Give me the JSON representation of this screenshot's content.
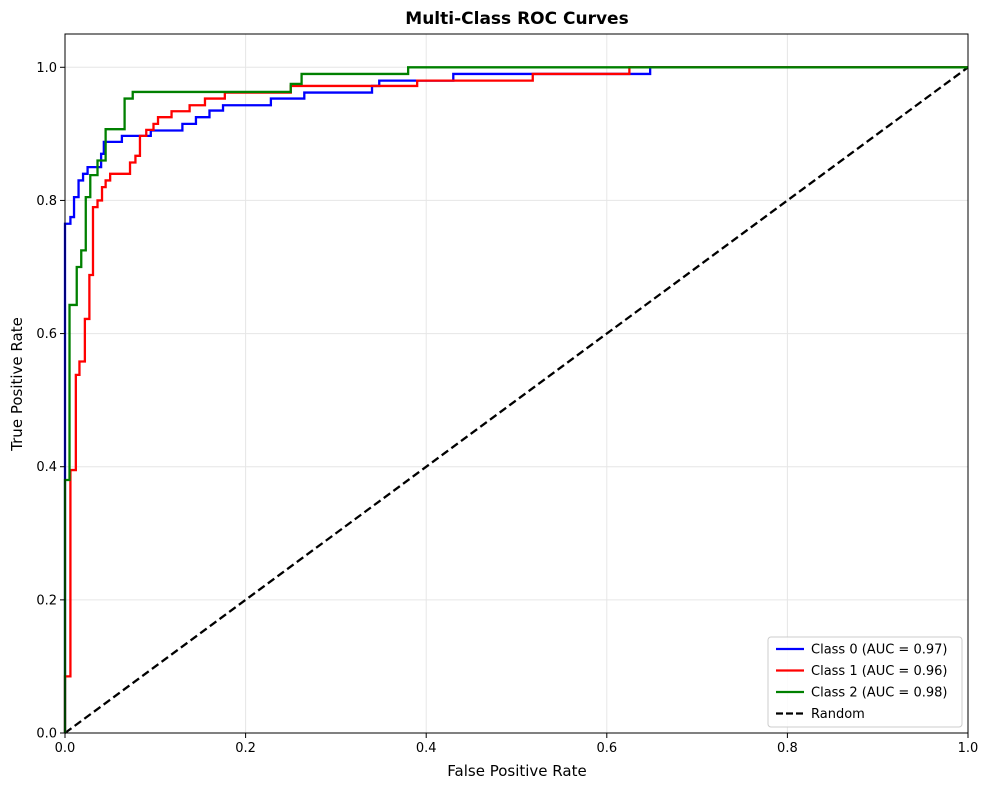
{
  "chart_data": {
    "type": "line",
    "title": "Multi-Class ROC Curves",
    "xlabel": "False Positive Rate",
    "ylabel": "True Positive Rate",
    "xlim": [
      0,
      1
    ],
    "ylim": [
      0,
      1.05
    ],
    "xticks": [
      "0.0",
      "0.2",
      "0.4",
      "0.6",
      "0.8",
      "1.0"
    ],
    "yticks": [
      "0.0",
      "0.2",
      "0.4",
      "0.6",
      "0.8",
      "1.0"
    ],
    "grid": true,
    "legend_position": "lower right",
    "series": [
      {
        "name": "Class 0 (AUC = 0.97)",
        "color": "#0000ff",
        "points": [
          [
            0,
            0
          ],
          [
            0,
            0.765
          ],
          [
            0.006,
            0.765
          ],
          [
            0.006,
            0.775
          ],
          [
            0.01,
            0.775
          ],
          [
            0.01,
            0.805
          ],
          [
            0.015,
            0.805
          ],
          [
            0.015,
            0.83
          ],
          [
            0.02,
            0.83
          ],
          [
            0.02,
            0.84
          ],
          [
            0.025,
            0.84
          ],
          [
            0.025,
            0.85
          ],
          [
            0.04,
            0.85
          ],
          [
            0.04,
            0.87
          ],
          [
            0.043,
            0.87
          ],
          [
            0.043,
            0.888
          ],
          [
            0.063,
            0.888
          ],
          [
            0.063,
            0.897
          ],
          [
            0.095,
            0.897
          ],
          [
            0.095,
            0.905
          ],
          [
            0.13,
            0.905
          ],
          [
            0.13,
            0.915
          ],
          [
            0.145,
            0.915
          ],
          [
            0.145,
            0.925
          ],
          [
            0.16,
            0.925
          ],
          [
            0.16,
            0.935
          ],
          [
            0.175,
            0.935
          ],
          [
            0.175,
            0.943
          ],
          [
            0.228,
            0.943
          ],
          [
            0.228,
            0.953
          ],
          [
            0.265,
            0.953
          ],
          [
            0.265,
            0.962
          ],
          [
            0.34,
            0.962
          ],
          [
            0.34,
            0.972
          ],
          [
            0.348,
            0.972
          ],
          [
            0.348,
            0.98
          ],
          [
            0.43,
            0.98
          ],
          [
            0.43,
            0.99
          ],
          [
            0.648,
            0.99
          ],
          [
            0.648,
            1.0
          ],
          [
            1.0,
            1.0
          ]
        ]
      },
      {
        "name": "Class 1 (AUC = 0.96)",
        "color": "#ff0000",
        "points": [
          [
            0,
            0
          ],
          [
            0,
            0.085
          ],
          [
            0.006,
            0.085
          ],
          [
            0.006,
            0.395
          ],
          [
            0.012,
            0.395
          ],
          [
            0.012,
            0.538
          ],
          [
            0.016,
            0.538
          ],
          [
            0.016,
            0.558
          ],
          [
            0.022,
            0.558
          ],
          [
            0.022,
            0.622
          ],
          [
            0.027,
            0.622
          ],
          [
            0.027,
            0.688
          ],
          [
            0.031,
            0.688
          ],
          [
            0.031,
            0.79
          ],
          [
            0.036,
            0.79
          ],
          [
            0.036,
            0.8
          ],
          [
            0.041,
            0.8
          ],
          [
            0.041,
            0.82
          ],
          [
            0.045,
            0.82
          ],
          [
            0.045,
            0.83
          ],
          [
            0.05,
            0.83
          ],
          [
            0.05,
            0.84
          ],
          [
            0.072,
            0.84
          ],
          [
            0.072,
            0.857
          ],
          [
            0.078,
            0.857
          ],
          [
            0.078,
            0.867
          ],
          [
            0.083,
            0.867
          ],
          [
            0.083,
            0.897
          ],
          [
            0.09,
            0.897
          ],
          [
            0.09,
            0.906
          ],
          [
            0.098,
            0.906
          ],
          [
            0.098,
            0.915
          ],
          [
            0.103,
            0.915
          ],
          [
            0.103,
            0.925
          ],
          [
            0.118,
            0.925
          ],
          [
            0.118,
            0.934
          ],
          [
            0.138,
            0.934
          ],
          [
            0.138,
            0.943
          ],
          [
            0.155,
            0.943
          ],
          [
            0.155,
            0.953
          ],
          [
            0.177,
            0.953
          ],
          [
            0.177,
            0.962
          ],
          [
            0.25,
            0.962
          ],
          [
            0.25,
            0.972
          ],
          [
            0.39,
            0.972
          ],
          [
            0.39,
            0.98
          ],
          [
            0.518,
            0.98
          ],
          [
            0.518,
            0.99
          ],
          [
            0.625,
            0.99
          ],
          [
            0.625,
            1.0
          ],
          [
            1.0,
            1.0
          ]
        ]
      },
      {
        "name": "Class 2 (AUC = 0.98)",
        "color": "#008000",
        "points": [
          [
            0,
            0
          ],
          [
            0,
            0.38
          ],
          [
            0.005,
            0.38
          ],
          [
            0.005,
            0.643
          ],
          [
            0.013,
            0.643
          ],
          [
            0.013,
            0.7
          ],
          [
            0.018,
            0.7
          ],
          [
            0.018,
            0.725
          ],
          [
            0.023,
            0.725
          ],
          [
            0.023,
            0.805
          ],
          [
            0.028,
            0.805
          ],
          [
            0.028,
            0.838
          ],
          [
            0.036,
            0.838
          ],
          [
            0.036,
            0.86
          ],
          [
            0.045,
            0.86
          ],
          [
            0.045,
            0.907
          ],
          [
            0.066,
            0.907
          ],
          [
            0.066,
            0.953
          ],
          [
            0.075,
            0.953
          ],
          [
            0.075,
            0.963
          ],
          [
            0.25,
            0.963
          ],
          [
            0.25,
            0.975
          ],
          [
            0.262,
            0.975
          ],
          [
            0.262,
            0.99
          ],
          [
            0.38,
            0.99
          ],
          [
            0.38,
            1.0
          ],
          [
            1.0,
            1.0
          ]
        ]
      },
      {
        "name": "Random",
        "color": "#000000",
        "dashed": true,
        "points": [
          [
            0,
            0
          ],
          [
            1,
            1
          ]
        ]
      }
    ]
  }
}
